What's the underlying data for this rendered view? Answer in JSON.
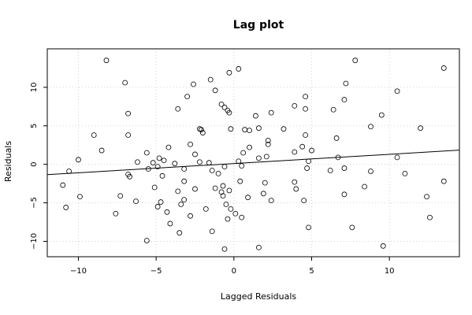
{
  "chart_data": {
    "type": "scatter",
    "title": "Lag plot",
    "xlabel": "Lagged Residuals",
    "ylabel": "Residuals",
    "xlim": [
      -12,
      14.5
    ],
    "ylim": [
      -12,
      15
    ],
    "xticks": [
      -10,
      -5,
      0,
      5,
      10
    ],
    "yticks": [
      -10,
      -5,
      0,
      5,
      10
    ],
    "grid": true,
    "regression_line": {
      "intercept": 0.1,
      "slope": 0.12
    },
    "points": [
      [
        -8.2,
        13.5
      ],
      [
        7.8,
        13.5
      ],
      [
        13.5,
        12.5
      ],
      [
        0.3,
        12.4
      ],
      [
        -0.3,
        11.9
      ],
      [
        -1.5,
        11.0
      ],
      [
        -7.0,
        10.6
      ],
      [
        -2.6,
        10.4
      ],
      [
        7.2,
        10.5
      ],
      [
        10.5,
        9.5
      ],
      [
        -1.2,
        9.6
      ],
      [
        -3.0,
        8.8
      ],
      [
        4.6,
        8.8
      ],
      [
        7.1,
        8.4
      ],
      [
        -0.8,
        7.8
      ],
      [
        -0.6,
        7.4
      ],
      [
        -0.4,
        7.0
      ],
      [
        -0.3,
        6.7
      ],
      [
        1.4,
        6.3
      ],
      [
        2.4,
        6.7
      ],
      [
        3.9,
        7.6
      ],
      [
        4.6,
        7.2
      ],
      [
        6.4,
        7.1
      ],
      [
        9.5,
        6.4
      ],
      [
        -3.6,
        7.2
      ],
      [
        -6.8,
        6.6
      ],
      [
        -2.2,
        4.6
      ],
      [
        -2.1,
        4.5
      ],
      [
        -0.2,
        4.6
      ],
      [
        0.7,
        4.5
      ],
      [
        1.0,
        4.4
      ],
      [
        1.6,
        4.7
      ],
      [
        3.2,
        4.6
      ],
      [
        8.8,
        4.9
      ],
      [
        12.0,
        4.7
      ],
      [
        -2.0,
        4.1
      ],
      [
        -6.8,
        3.8
      ],
      [
        -9.0,
        3.8
      ],
      [
        2.2,
        3.1
      ],
      [
        4.6,
        3.8
      ],
      [
        6.6,
        3.4
      ],
      [
        -2.8,
        2.6
      ],
      [
        1.0,
        2.2
      ],
      [
        2.2,
        2.6
      ],
      [
        4.4,
        2.3
      ],
      [
        -4.2,
        2.2
      ],
      [
        -8.5,
        1.8
      ],
      [
        -5.6,
        1.5
      ],
      [
        -4.8,
        0.8
      ],
      [
        -4.5,
        0.5
      ],
      [
        -2.5,
        1.3
      ],
      [
        0.6,
        1.5
      ],
      [
        3.9,
        1.6
      ],
      [
        5.0,
        1.8
      ],
      [
        -10.0,
        0.6
      ],
      [
        -6.2,
        0.3
      ],
      [
        -5.2,
        0.2
      ],
      [
        -3.8,
        0.1
      ],
      [
        -2.2,
        0.3
      ],
      [
        -1.6,
        0.2
      ],
      [
        -0.6,
        -0.3
      ],
      [
        0.3,
        0.4
      ],
      [
        0.5,
        -0.2
      ],
      [
        1.6,
        0.8
      ],
      [
        2.1,
        1.0
      ],
      [
        4.8,
        0.4
      ],
      [
        6.7,
        0.9
      ],
      [
        10.5,
        0.9
      ],
      [
        -11.0,
        -2.7
      ],
      [
        -10.6,
        -0.9
      ],
      [
        -6.8,
        -1.3
      ],
      [
        -5.5,
        -0.6
      ],
      [
        -4.9,
        -0.3
      ],
      [
        -3.2,
        -0.6
      ],
      [
        -1.4,
        -0.8
      ],
      [
        -1.0,
        -1.2
      ],
      [
        4.7,
        -0.5
      ],
      [
        6.2,
        -0.8
      ],
      [
        7.1,
        -0.5
      ],
      [
        8.8,
        -0.9
      ],
      [
        11.0,
        -1.2
      ],
      [
        -6.7,
        -1.6
      ],
      [
        -4.6,
        -1.5
      ],
      [
        -3.2,
        -2.2
      ],
      [
        -2.5,
        -3.2
      ],
      [
        -1.2,
        -3.1
      ],
      [
        -0.7,
        -2.8
      ],
      [
        -0.3,
        -3.4
      ],
      [
        0.4,
        -2.2
      ],
      [
        2.0,
        -2.4
      ],
      [
        3.9,
        -2.3
      ],
      [
        8.4,
        -2.9
      ],
      [
        13.5,
        -2.2
      ],
      [
        -5.1,
        -3.0
      ],
      [
        -3.6,
        -3.5
      ],
      [
        -0.8,
        -3.6
      ],
      [
        1.9,
        -3.8
      ],
      [
        4.0,
        -3.2
      ],
      [
        -9.9,
        -4.2
      ],
      [
        -7.3,
        -4.1
      ],
      [
        -4.7,
        -4.9
      ],
      [
        -3.2,
        -4.6
      ],
      [
        -0.7,
        -4.1
      ],
      [
        0.9,
        -4.3
      ],
      [
        2.4,
        -4.7
      ],
      [
        4.5,
        -4.7
      ],
      [
        7.1,
        -3.9
      ],
      [
        12.4,
        -4.2
      ],
      [
        -10.8,
        -5.6
      ],
      [
        -6.3,
        -4.8
      ],
      [
        -4.9,
        -5.5
      ],
      [
        -3.4,
        -5.2
      ],
      [
        -1.8,
        -5.8
      ],
      [
        -0.5,
        -5.2
      ],
      [
        -0.2,
        -5.8
      ],
      [
        0.1,
        -6.4
      ],
      [
        -7.6,
        -6.4
      ],
      [
        -4.3,
        -6.2
      ],
      [
        -2.8,
        -6.7
      ],
      [
        0.5,
        -6.9
      ],
      [
        -4.1,
        -7.7
      ],
      [
        -1.4,
        -8.7
      ],
      [
        4.8,
        -8.2
      ],
      [
        7.6,
        -8.2
      ],
      [
        -3.5,
        -8.9
      ],
      [
        -5.6,
        -9.9
      ],
      [
        -0.6,
        -11.0
      ],
      [
        1.6,
        -10.8
      ],
      [
        9.6,
        -10.6
      ],
      [
        12.6,
        -6.9
      ],
      [
        -0.4,
        -7.1
      ]
    ]
  }
}
